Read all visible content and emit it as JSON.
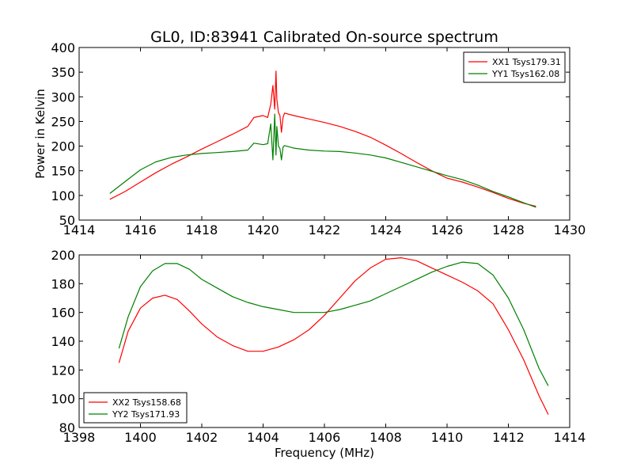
{
  "chart_data": [
    {
      "type": "line",
      "title": "GL0, ID:83941 Calibrated On-source spectrum",
      "xlabel": "",
      "ylabel": "Power in Kelvin",
      "xlim": [
        1414,
        1430
      ],
      "ylim": [
        50,
        400
      ],
      "xticks": [
        "1414",
        "1416",
        "1418",
        "1420",
        "1422",
        "1424",
        "1426",
        "1428",
        "1430"
      ],
      "yticks": [
        "50",
        "100",
        "150",
        "200",
        "250",
        "300",
        "350",
        "400"
      ],
      "legend_position": "top-right",
      "series": [
        {
          "name": "XX1 Tsys179.31",
          "color": "#ff0000",
          "x": [
            1415.0,
            1415.5,
            1416.0,
            1416.5,
            1417.0,
            1417.5,
            1418.0,
            1418.5,
            1419.0,
            1419.5,
            1419.7,
            1420.0,
            1420.15,
            1420.25,
            1420.32,
            1420.38,
            1420.42,
            1420.45,
            1420.5,
            1420.55,
            1420.6,
            1420.65,
            1420.7,
            1421.0,
            1421.5,
            1422.0,
            1422.5,
            1423.0,
            1423.5,
            1424.0,
            1424.5,
            1425.0,
            1425.5,
            1426.0,
            1426.5,
            1427.0,
            1427.5,
            1428.0,
            1428.5,
            1428.9
          ],
          "y": [
            92,
            108,
            127,
            146,
            163,
            178,
            194,
            209,
            224,
            240,
            258,
            262,
            258,
            285,
            323,
            275,
            352,
            295,
            268,
            262,
            228,
            258,
            267,
            262,
            255,
            248,
            240,
            230,
            218,
            202,
            185,
            167,
            150,
            135,
            127,
            117,
            106,
            94,
            84,
            78
          ]
        },
        {
          "name": "YY1 Tsys162.08",
          "color": "#008000",
          "x": [
            1415.0,
            1415.5,
            1416.0,
            1416.5,
            1417.0,
            1417.5,
            1418.0,
            1418.5,
            1419.0,
            1419.5,
            1419.7,
            1420.0,
            1420.15,
            1420.25,
            1420.32,
            1420.38,
            1420.42,
            1420.45,
            1420.5,
            1420.55,
            1420.6,
            1420.65,
            1420.7,
            1421.0,
            1421.5,
            1422.0,
            1422.5,
            1423.0,
            1423.5,
            1424.0,
            1424.5,
            1425.0,
            1425.5,
            1426.0,
            1426.5,
            1427.0,
            1427.5,
            1428.0,
            1428.5,
            1428.9
          ],
          "y": [
            104,
            128,
            152,
            168,
            177,
            182,
            185,
            187,
            189,
            192,
            206,
            203,
            205,
            245,
            172,
            265,
            182,
            240,
            200,
            195,
            172,
            198,
            201,
            196,
            192,
            190,
            189,
            186,
            182,
            176,
            167,
            158,
            149,
            140,
            132,
            121,
            108,
            97,
            85,
            76
          ]
        }
      ]
    },
    {
      "type": "line",
      "title": "",
      "xlabel": "Frequency (MHz)",
      "ylabel": "",
      "xlim": [
        1398,
        1414
      ],
      "ylim": [
        80,
        200
      ],
      "xticks": [
        "1398",
        "1400",
        "1402",
        "1404",
        "1406",
        "1408",
        "1410",
        "1412",
        "1414"
      ],
      "yticks": [
        "80",
        "100",
        "120",
        "140",
        "160",
        "180",
        "200"
      ],
      "legend_position": "bottom-left",
      "series": [
        {
          "name": "XX2 Tsys158.68",
          "color": "#ff0000",
          "x": [
            1399.3,
            1399.6,
            1400.0,
            1400.4,
            1400.8,
            1401.2,
            1401.6,
            1402.0,
            1402.5,
            1403.0,
            1403.5,
            1404.0,
            1404.5,
            1405.0,
            1405.5,
            1406.0,
            1406.5,
            1407.0,
            1407.5,
            1408.0,
            1408.5,
            1409.0,
            1409.5,
            1410.0,
            1410.5,
            1411.0,
            1411.5,
            1412.0,
            1412.5,
            1413.0,
            1413.3
          ],
          "y": [
            125,
            147,
            163,
            170,
            172,
            169,
            161,
            152,
            143,
            137,
            133,
            133,
            136,
            141,
            148,
            158,
            170,
            182,
            191,
            197,
            198,
            196,
            191,
            186,
            181,
            175,
            166,
            148,
            127,
            102,
            89
          ]
        },
        {
          "name": "YY2 Tsys171.93",
          "color": "#008000",
          "x": [
            1399.3,
            1399.6,
            1400.0,
            1400.4,
            1400.8,
            1401.2,
            1401.6,
            1402.0,
            1402.5,
            1403.0,
            1403.5,
            1404.0,
            1404.5,
            1405.0,
            1405.5,
            1406.0,
            1406.5,
            1407.0,
            1407.5,
            1408.0,
            1408.5,
            1409.0,
            1409.5,
            1410.0,
            1410.5,
            1411.0,
            1411.5,
            1412.0,
            1412.5,
            1413.0,
            1413.3
          ],
          "y": [
            135,
            157,
            178,
            189,
            194,
            194,
            190,
            183,
            177,
            171,
            167,
            164,
            162,
            160,
            160,
            160,
            162,
            165,
            168,
            173,
            178,
            183,
            188,
            192,
            195,
            194,
            186,
            170,
            148,
            121,
            109
          ]
        }
      ]
    }
  ]
}
